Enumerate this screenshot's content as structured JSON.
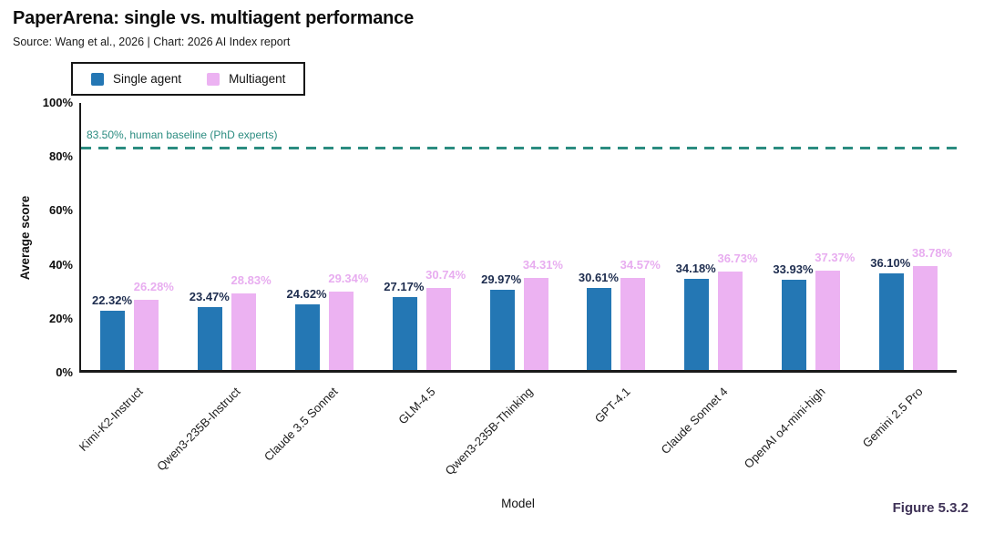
{
  "header": {
    "title": "PaperArena: single vs. multiagent performance",
    "subtitle": "Source: Wang et al., 2026 | Chart: 2026 AI Index report"
  },
  "figure_label": "Figure 5.3.2",
  "colors": {
    "single_bar": "#2477b4",
    "multi_bar": "#ecb2f2",
    "single_value_label": "#1e2d4f",
    "multi_value_label": "#e8adf0",
    "baseline": "#2b8c80",
    "figure_label": "#3e3156",
    "axis": "#1a1a1a"
  },
  "chart_data": {
    "type": "bar",
    "title": "PaperArena: single vs. multiagent performance",
    "categories": [
      "Kimi-K2-Instruct",
      "Qwen3-235B-Instruct",
      "Claude 3.5 Sonnet",
      "GLM-4.5",
      "Qwen3-235B-Thinking",
      "GPT-4.1",
      "Claude Sonnet 4",
      "OpenAI o4-mini-high",
      "Gemini 2.5 Pro"
    ],
    "series": [
      {
        "name": "Single agent",
        "values": [
          22.32,
          23.47,
          24.62,
          27.17,
          29.97,
          30.61,
          34.18,
          33.93,
          36.1
        ],
        "labels": [
          "22.32%",
          "23.47%",
          "24.62%",
          "27.17%",
          "29.97%",
          "30.61%",
          "34.18%",
          "33.93%",
          "36.10%"
        ]
      },
      {
        "name": "Multiagent",
        "values": [
          26.28,
          28.83,
          29.34,
          30.74,
          34.31,
          34.57,
          36.73,
          37.37,
          38.78
        ],
        "labels": [
          "26.28%",
          "28.83%",
          "29.34%",
          "30.74%",
          "34.31%",
          "34.57%",
          "36.73%",
          "37.37%",
          "38.78%"
        ]
      }
    ],
    "baseline": {
      "value": 83.5,
      "label": "83.50%, human baseline (PhD experts)"
    },
    "xlabel": "Model",
    "ylabel": "Average score",
    "ylim": [
      0,
      100
    ],
    "yticks": {
      "values": [
        0,
        20,
        40,
        60,
        80,
        100
      ],
      "labels": [
        "0%",
        "20%",
        "40%",
        "60%",
        "80%",
        "100%"
      ]
    },
    "grid": false,
    "legend_position": "top-left"
  }
}
